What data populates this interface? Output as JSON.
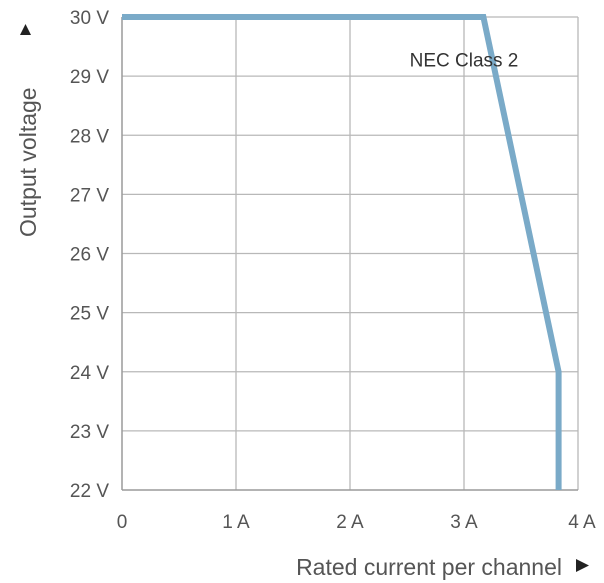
{
  "chart_data": {
    "type": "line",
    "xlabel": "Rated current per channel",
    "ylabel": "Output voltage",
    "xlim": [
      0,
      4
    ],
    "ylim": [
      22,
      30
    ],
    "x_ticks": [
      {
        "value": 0,
        "label": "0"
      },
      {
        "value": 1,
        "label": "1 A"
      },
      {
        "value": 2,
        "label": "2 A"
      },
      {
        "value": 3,
        "label": "3 A"
      },
      {
        "value": 4,
        "label": "4 A"
      }
    ],
    "y_ticks": [
      {
        "value": 22,
        "label": "22 V"
      },
      {
        "value": 23,
        "label": "23 V"
      },
      {
        "value": 24,
        "label": "24 V"
      },
      {
        "value": 25,
        "label": "25 V"
      },
      {
        "value": 26,
        "label": "26 V"
      },
      {
        "value": 27,
        "label": "27 V"
      },
      {
        "value": 28,
        "label": "28 V"
      },
      {
        "value": 29,
        "label": "29 V"
      },
      {
        "value": 30,
        "label": "30 V"
      }
    ],
    "grid": true,
    "series": [
      {
        "points": [
          {
            "x": 0,
            "y": 30
          },
          {
            "x": 3.17,
            "y": 30
          },
          {
            "x": 3.83,
            "y": 24
          },
          {
            "x": 3.83,
            "y": 22
          }
        ],
        "color": "#7aaac8"
      }
    ],
    "annotations": [
      {
        "text": "NEC Class 2",
        "x": 3.0,
        "y": 29.28
      }
    ],
    "arrow_icons": {
      "y_axis": "up-triangle-icon",
      "x_axis": "right-triangle-icon"
    }
  }
}
